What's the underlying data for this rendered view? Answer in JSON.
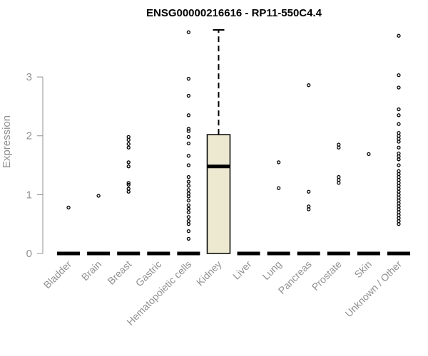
{
  "chart_data": {
    "type": "boxplot",
    "title": "ENSG00000216616 - RP11-550C4.4",
    "xlabel": "",
    "ylabel": "Expression",
    "ylim": [
      0,
      3.8
    ],
    "yticks": [
      0,
      1,
      2,
      3
    ],
    "grid": false,
    "legend": "none",
    "colors": {
      "box_fill": "#ede8d0",
      "stroke": "#000000",
      "axis": "#909090",
      "text": "#909090"
    },
    "categories": [
      "Bladder",
      "Brain",
      "Breast",
      "Gastric",
      "Hematopoietic cells",
      "Kidney",
      "Liver",
      "Lung",
      "Pancreas",
      "Prostate",
      "Skin",
      "Unknown / Other"
    ],
    "boxes": [
      {
        "category": "Bladder",
        "q1": 0,
        "median": 0,
        "q3": 0,
        "whisker_low": 0,
        "whisker_high": 0,
        "outliers": [
          0.78
        ]
      },
      {
        "category": "Brain",
        "q1": 0,
        "median": 0,
        "q3": 0,
        "whisker_low": 0,
        "whisker_high": 0,
        "outliers": [
          0.98
        ]
      },
      {
        "category": "Breast",
        "q1": 0,
        "median": 0,
        "q3": 0,
        "whisker_low": 0,
        "whisker_high": 0,
        "outliers": [
          1.05,
          1.1,
          1.17,
          1.2,
          1.48,
          1.55,
          1.8,
          1.86,
          1.93,
          1.98
        ]
      },
      {
        "category": "Gastric",
        "q1": 0,
        "median": 0,
        "q3": 0,
        "whisker_low": 0,
        "whisker_high": 0,
        "outliers": []
      },
      {
        "category": "Hematopoietic cells",
        "q1": 0,
        "median": 0,
        "q3": 0,
        "whisker_low": 0,
        "whisker_high": 0,
        "outliers": [
          0.25,
          0.38,
          0.5,
          0.55,
          0.62,
          0.7,
          0.76,
          0.82,
          0.9,
          0.97,
          1.02,
          1.08,
          1.15,
          1.22,
          1.3,
          1.5,
          1.66,
          1.87,
          1.98,
          2.08,
          2.12,
          2.35,
          2.68,
          2.97,
          3.76
        ]
      },
      {
        "category": "Kidney",
        "q1": 0,
        "median": 1.48,
        "q3": 2.02,
        "whisker_low": 0,
        "whisker_high": 3.8,
        "outliers": []
      },
      {
        "category": "Liver",
        "q1": 0,
        "median": 0,
        "q3": 0,
        "whisker_low": 0,
        "whisker_high": 0,
        "outliers": []
      },
      {
        "category": "Lung",
        "q1": 0,
        "median": 0,
        "q3": 0,
        "whisker_low": 0,
        "whisker_high": 0,
        "outliers": [
          1.11,
          1.55
        ]
      },
      {
        "category": "Pancreas",
        "q1": 0,
        "median": 0,
        "q3": 0,
        "whisker_low": 0,
        "whisker_high": 0,
        "outliers": [
          0.75,
          0.8,
          1.05,
          2.86
        ]
      },
      {
        "category": "Prostate",
        "q1": 0,
        "median": 0,
        "q3": 0,
        "whisker_low": 0,
        "whisker_high": 0,
        "outliers": [
          1.2,
          1.25,
          1.3,
          1.8,
          1.85
        ]
      },
      {
        "category": "Skin",
        "q1": 0,
        "median": 0,
        "q3": 0,
        "whisker_low": 0,
        "whisker_high": 0,
        "outliers": [
          1.69
        ]
      },
      {
        "category": "Unknown / Other",
        "q1": 0,
        "median": 0,
        "q3": 0,
        "whisker_low": 0,
        "whisker_high": 0,
        "outliers": [
          0.5,
          0.55,
          0.6,
          0.65,
          0.7,
          0.75,
          0.8,
          0.85,
          0.9,
          0.95,
          1.0,
          1.05,
          1.1,
          1.15,
          1.2,
          1.25,
          1.3,
          1.35,
          1.4,
          1.5,
          1.6,
          1.65,
          1.7,
          1.8,
          1.9,
          1.95,
          2.0,
          2.05,
          2.2,
          2.35,
          2.45,
          2.82,
          3.03,
          3.7
        ]
      }
    ]
  }
}
